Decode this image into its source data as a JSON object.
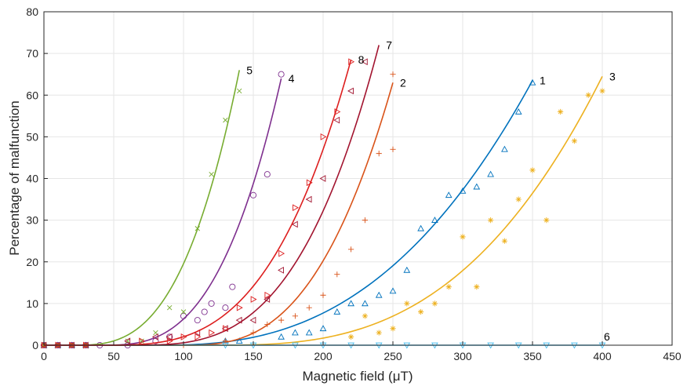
{
  "chart_data": {
    "type": "scatter",
    "xlabel": "Magnetic field (μT)",
    "ylabel": "Percentage of malfunction",
    "xlim": [
      0,
      450
    ],
    "ylim": [
      0,
      80
    ],
    "xticks": [
      0,
      50,
      100,
      150,
      200,
      250,
      300,
      350,
      400,
      450
    ],
    "yticks": [
      0,
      10,
      20,
      30,
      40,
      50,
      60,
      70,
      80
    ],
    "grid": true,
    "series": [
      {
        "label": "1",
        "color": "#0072BD",
        "marker": "triangle-up",
        "fit": {
          "x0": 80,
          "x1": 350,
          "k": 63.5,
          "p": 2.6
        },
        "points": [
          [
            130,
            1
          ],
          [
            140,
            1
          ],
          [
            170,
            2
          ],
          [
            180,
            3
          ],
          [
            190,
            3
          ],
          [
            200,
            4
          ],
          [
            210,
            8
          ],
          [
            220,
            10
          ],
          [
            230,
            10
          ],
          [
            240,
            12
          ],
          [
            250,
            13
          ],
          [
            260,
            18
          ],
          [
            270,
            28
          ],
          [
            280,
            30
          ],
          [
            290,
            36
          ],
          [
            300,
            37
          ],
          [
            310,
            38
          ],
          [
            320,
            41
          ],
          [
            330,
            47
          ],
          [
            340,
            56
          ],
          [
            350,
            63
          ]
        ]
      },
      {
        "label": "2",
        "color": "#D95319",
        "marker": "plus",
        "fit": {
          "x0": 100,
          "x1": 250,
          "k": 63,
          "p": 2.8
        },
        "points": [
          [
            100,
            0
          ],
          [
            130,
            1
          ],
          [
            150,
            3
          ],
          [
            160,
            5
          ],
          [
            170,
            6
          ],
          [
            180,
            7
          ],
          [
            190,
            9
          ],
          [
            200,
            12
          ],
          [
            210,
            17
          ],
          [
            220,
            23
          ],
          [
            230,
            30
          ],
          [
            240,
            46
          ],
          [
            250,
            47
          ],
          [
            250,
            65
          ]
        ]
      },
      {
        "label": "3",
        "color": "#EDB120",
        "marker": "asterisk",
        "fit": {
          "x0": 120,
          "x1": 400,
          "k": 64.5,
          "p": 2.9
        },
        "points": [
          [
            220,
            2
          ],
          [
            230,
            7
          ],
          [
            240,
            3
          ],
          [
            250,
            4
          ],
          [
            260,
            10
          ],
          [
            270,
            8
          ],
          [
            280,
            10
          ],
          [
            290,
            14
          ],
          [
            300,
            26
          ],
          [
            310,
            14
          ],
          [
            320,
            30
          ],
          [
            330,
            25
          ],
          [
            340,
            35
          ],
          [
            350,
            42
          ],
          [
            360,
            30
          ],
          [
            370,
            56
          ],
          [
            380,
            49
          ],
          [
            390,
            60
          ],
          [
            400,
            61
          ]
        ]
      },
      {
        "label": "4",
        "color": "#7E2F8E",
        "marker": "circle",
        "fit": {
          "x0": 40,
          "x1": 170,
          "k": 64,
          "p": 3.0
        },
        "points": [
          [
            40,
            0
          ],
          [
            60,
            0
          ],
          [
            80,
            1
          ],
          [
            90,
            2
          ],
          [
            100,
            7
          ],
          [
            110,
            6
          ],
          [
            115,
            8
          ],
          [
            120,
            10
          ],
          [
            130,
            9
          ],
          [
            135,
            14
          ],
          [
            150,
            36
          ],
          [
            160,
            41
          ],
          [
            170,
            65
          ]
        ]
      },
      {
        "label": "5",
        "color": "#77AC30",
        "marker": "x",
        "fit": {
          "x0": 20,
          "x1": 140,
          "k": 66,
          "p": 3.0
        },
        "points": [
          [
            60,
            1
          ],
          [
            70,
            1
          ],
          [
            80,
            3
          ],
          [
            90,
            9
          ],
          [
            100,
            8
          ],
          [
            110,
            28
          ],
          [
            120,
            41
          ],
          [
            130,
            54
          ],
          [
            140,
            61
          ]
        ]
      },
      {
        "label": "6",
        "color": "#4DBEEE",
        "marker": "triangle-down",
        "fit": {
          "x0": 0,
          "x1": 400,
          "k": 0,
          "p": 1
        },
        "points": [
          [
            130,
            0
          ],
          [
            150,
            0
          ],
          [
            180,
            0
          ],
          [
            200,
            0
          ],
          [
            220,
            0
          ],
          [
            240,
            0
          ],
          [
            260,
            0
          ],
          [
            280,
            0
          ],
          [
            300,
            0
          ],
          [
            320,
            0
          ],
          [
            340,
            0
          ],
          [
            360,
            0
          ],
          [
            380,
            0
          ],
          [
            400,
            0
          ]
        ]
      },
      {
        "label": "7",
        "color": "#A2142F",
        "marker": "triangle-left",
        "fit": {
          "x0": 60,
          "x1": 240,
          "k": 72,
          "p": 3.2
        },
        "points": [
          [
            60,
            1
          ],
          [
            80,
            2
          ],
          [
            90,
            2
          ],
          [
            110,
            3
          ],
          [
            130,
            4
          ],
          [
            140,
            6
          ],
          [
            150,
            6
          ],
          [
            160,
            11
          ],
          [
            170,
            18
          ],
          [
            180,
            29
          ],
          [
            190,
            35
          ],
          [
            200,
            40
          ],
          [
            210,
            54
          ],
          [
            220,
            61
          ],
          [
            230,
            68
          ]
        ]
      },
      {
        "label": "8",
        "color": "#DD1E1E",
        "marker": "triangle-right",
        "fit": {
          "x0": 40,
          "x1": 220,
          "k": 68.5,
          "p": 3.2
        },
        "points": [
          [
            70,
            1
          ],
          [
            90,
            1
          ],
          [
            100,
            2
          ],
          [
            110,
            2
          ],
          [
            120,
            3
          ],
          [
            130,
            4
          ],
          [
            140,
            9
          ],
          [
            150,
            11
          ],
          [
            160,
            12
          ],
          [
            170,
            22
          ],
          [
            180,
            33
          ],
          [
            190,
            39
          ],
          [
            200,
            50
          ],
          [
            210,
            56
          ],
          [
            220,
            68
          ]
        ]
      }
    ]
  }
}
